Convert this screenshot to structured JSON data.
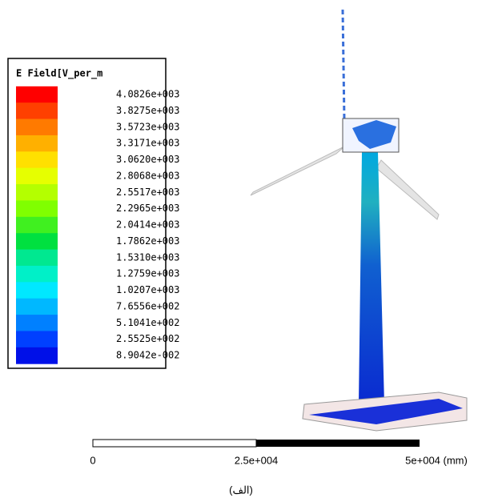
{
  "legend": {
    "title": "E Field[V_per_m",
    "labels": [
      "4.0826e+003",
      "3.8275e+003",
      "3.5723e+003",
      "3.3171e+003",
      "3.0620e+003",
      "2.8068e+003",
      "2.5517e+003",
      "2.2965e+003",
      "2.0414e+003",
      "1.7862e+003",
      "1.5310e+003",
      "1.2759e+003",
      "1.0207e+003",
      "7.6556e+002",
      "5.1041e+002",
      "2.5525e+002",
      "8.9042e-002"
    ],
    "colors": [
      "#ff0000",
      "#ff4000",
      "#ff7a00",
      "#ffb000",
      "#ffe000",
      "#e6ff00",
      "#b4ff00",
      "#80ff00",
      "#40f020",
      "#00e040",
      "#00e890",
      "#00f0c8",
      "#00e8ff",
      "#00b8ff",
      "#0080ff",
      "#0040ff",
      "#0010e8"
    ]
  },
  "scale_bar": {
    "labels": [
      "0",
      "2.5e+004",
      "5e+004 (mm)"
    ]
  },
  "caption": "(الف)"
}
